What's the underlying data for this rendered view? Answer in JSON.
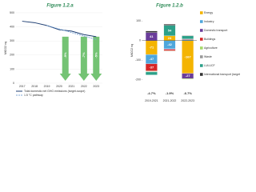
{
  "chart_data": [
    {
      "type": "line",
      "title": "Figure 1.2.a",
      "y_label": "MtCO2 eq",
      "categories": [
        "2017",
        "2018",
        "2019",
        "2020",
        "2021",
        "2022",
        "2023"
      ],
      "series": [
        {
          "name": "Total domestic net GHG emissions (target-scope)",
          "color": "#1f3f73",
          "dash": false,
          "values": [
            440,
            430,
            410,
            380,
            370,
            345,
            330
          ]
        },
        {
          "name": "1.5 °C pathway",
          "color": "#7fa7d6",
          "dash": true,
          "values": [
            null,
            null,
            410,
            385,
            360,
            335,
            310
          ]
        }
      ],
      "annotations": [
        "-9%",
        "-7%",
        "-5%"
      ],
      "ylim": [
        0,
        500
      ],
      "yticks": [
        0,
        100,
        200,
        300,
        400,
        500
      ],
      "grid": true
    },
    {
      "type": "stacked_bar",
      "title": "Figure 1.2.b",
      "y_label": "MtCO2 eq",
      "categories": [
        "2019-2021",
        "2021-2022",
        "2022-2023"
      ],
      "change_labels": [
        "-4.7%",
        "-1.9%",
        "-6.7%"
      ],
      "series": [
        {
          "name": "Energy",
          "color": "#f4b400",
          "values": [
            -71,
            24,
            -167
          ]
        },
        {
          "name": "Industry",
          "color": "#4ea6dc",
          "values": [
            -47,
            -42,
            5
          ]
        },
        {
          "name": "Domestic transport",
          "color": "#6a3d9a",
          "values": [
            41,
            -3,
            -27
          ]
        },
        {
          "name": "Buildings",
          "color": "#d62728",
          "values": [
            -37,
            -7,
            3
          ]
        },
        {
          "name": "Agriculture",
          "color": "#a6d96a",
          "values": [
            -3,
            -2,
            -4
          ]
        },
        {
          "name": "Waste",
          "color": "#999999",
          "values": [
            -2,
            -1,
            -1
          ]
        },
        {
          "name": "LULUCF",
          "color": "#2ca089",
          "values": [
            -15,
            54,
            16
          ]
        },
        {
          "name": "International transport (target scope)",
          "color": "#333333",
          "values": [
            8,
            6,
            2
          ]
        }
      ],
      "ylim": [
        -250,
        150
      ],
      "yticks": [
        -200,
        -100,
        0,
        100
      ],
      "grid": false,
      "legend": "right"
    }
  ]
}
